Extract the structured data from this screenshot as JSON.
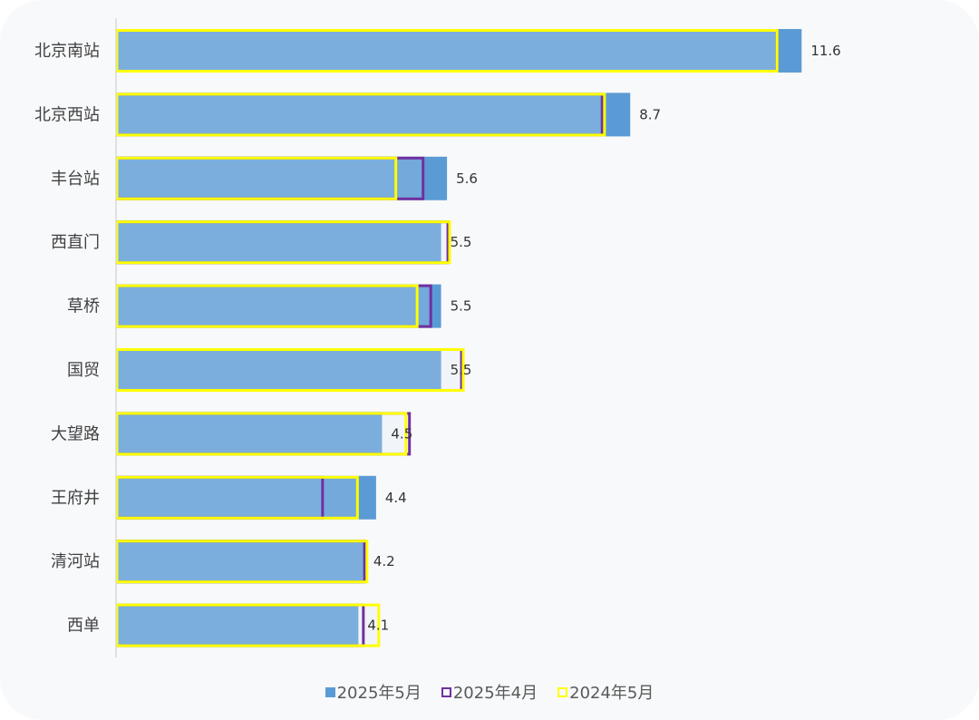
{
  "chart_data": {
    "type": "bar",
    "orientation": "horizontal",
    "title": "",
    "xlabel": "",
    "ylabel": "",
    "xlim": [
      0,
      14.5
    ],
    "grid": false,
    "legend_position": "bottom",
    "categories": [
      "北京南站",
      "北京西站",
      "丰台站",
      "西直门",
      "草桥",
      "国贸",
      "大望路",
      "王府井",
      "清河站",
      "西单"
    ],
    "series": [
      {
        "name": "2025年5月",
        "style": "filled",
        "color": "#5b9bd5",
        "values": [
          11.6,
          8.7,
          5.6,
          5.5,
          5.5,
          5.5,
          4.5,
          4.4,
          4.2,
          4.1
        ],
        "labels": [
          "11.6",
          "8.7",
          "5.6",
          "5.5",
          "5.5",
          "5.5",
          "4.5",
          "4.4",
          "4.2",
          "4.1"
        ]
      },
      {
        "name": "2025年4月",
        "style": "outline",
        "color": "#7030a0",
        "values": [
          11.2,
          8.24,
          5.21,
          5.63,
          5.34,
          5.86,
          4.98,
          3.51,
          4.22,
          4.2
        ]
      },
      {
        "name": "2024年5月",
        "style": "outline",
        "color": "#ffff00",
        "values": [
          11.2,
          8.28,
          4.75,
          5.66,
          5.11,
          5.89,
          4.92,
          4.1,
          4.26,
          4.46
        ]
      }
    ]
  },
  "legend": {
    "items": [
      {
        "label": "2025年5月",
        "color": "#5b9bd5",
        "style": "filled"
      },
      {
        "label": "2025年4月",
        "color": "#7030a0",
        "style": "outline"
      },
      {
        "label": "2024年5月",
        "color": "#ffff00",
        "style": "outline"
      }
    ]
  }
}
